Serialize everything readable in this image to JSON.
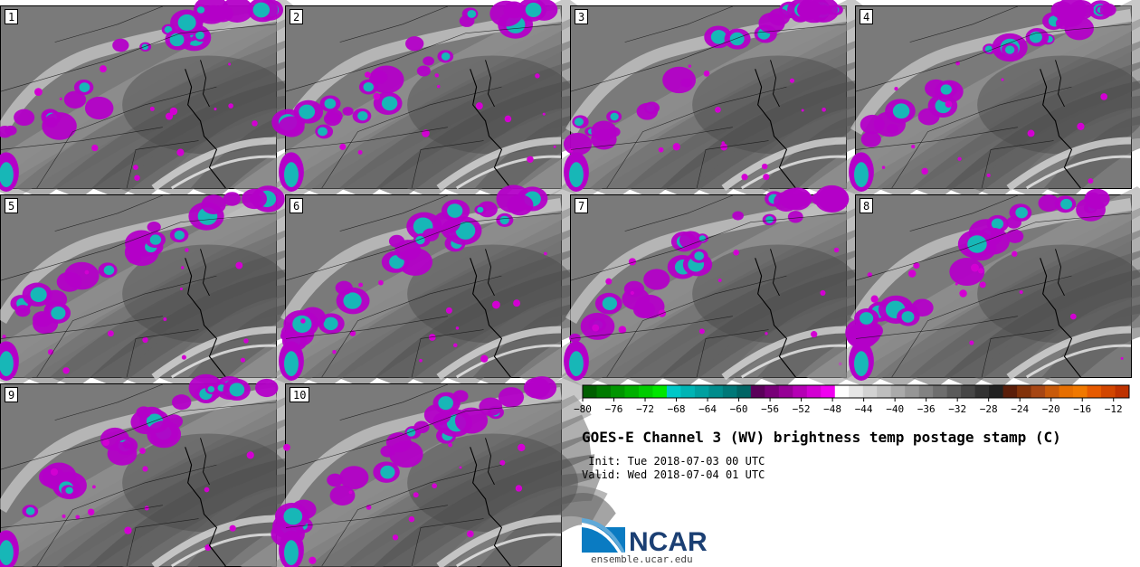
{
  "figure": {
    "title": "GOES-E Channel 3 (WV) brightness temp postage stamp (C)",
    "init": " Init: Tue 2018-07-03 00 UTC",
    "valid": "Valid: Wed 2018-07-04 01 UTC"
  },
  "panels": [
    {
      "label": "1"
    },
    {
      "label": "2"
    },
    {
      "label": "3"
    },
    {
      "label": "4"
    },
    {
      "label": "5"
    },
    {
      "label": "6"
    },
    {
      "label": "7"
    },
    {
      "label": "8"
    },
    {
      "label": "9"
    },
    {
      "label": "10"
    }
  ],
  "colorbar": {
    "ticks": [
      "−80",
      "−76",
      "−72",
      "−68",
      "−64",
      "−60",
      "−56",
      "−52",
      "−48",
      "−44",
      "−40",
      "−36",
      "−32",
      "−28",
      "−24",
      "−20",
      "−16",
      "−12"
    ],
    "colors": [
      "#005f00",
      "#007a00",
      "#009500",
      "#00b000",
      "#00cc00",
      "#00e600",
      "#00c8c8",
      "#00b4b4",
      "#00a0a0",
      "#008c8c",
      "#007878",
      "#006464",
      "#5a005a",
      "#780078",
      "#960096",
      "#b400b4",
      "#d200d2",
      "#f000f0",
      "#ffffff",
      "#e6e6e6",
      "#d2d2d2",
      "#bebebe",
      "#aaaaaa",
      "#969696",
      "#828282",
      "#6e6e6e",
      "#5a5a5a",
      "#464646",
      "#323232",
      "#202020",
      "#5a1e0a",
      "#82320a",
      "#a64614",
      "#c85a0a",
      "#e66e00",
      "#f07800",
      "#e65a00",
      "#d24600",
      "#be3200"
    ]
  },
  "branding": {
    "logo_text": "NCAR",
    "url": "ensemble.ucar.edu"
  }
}
